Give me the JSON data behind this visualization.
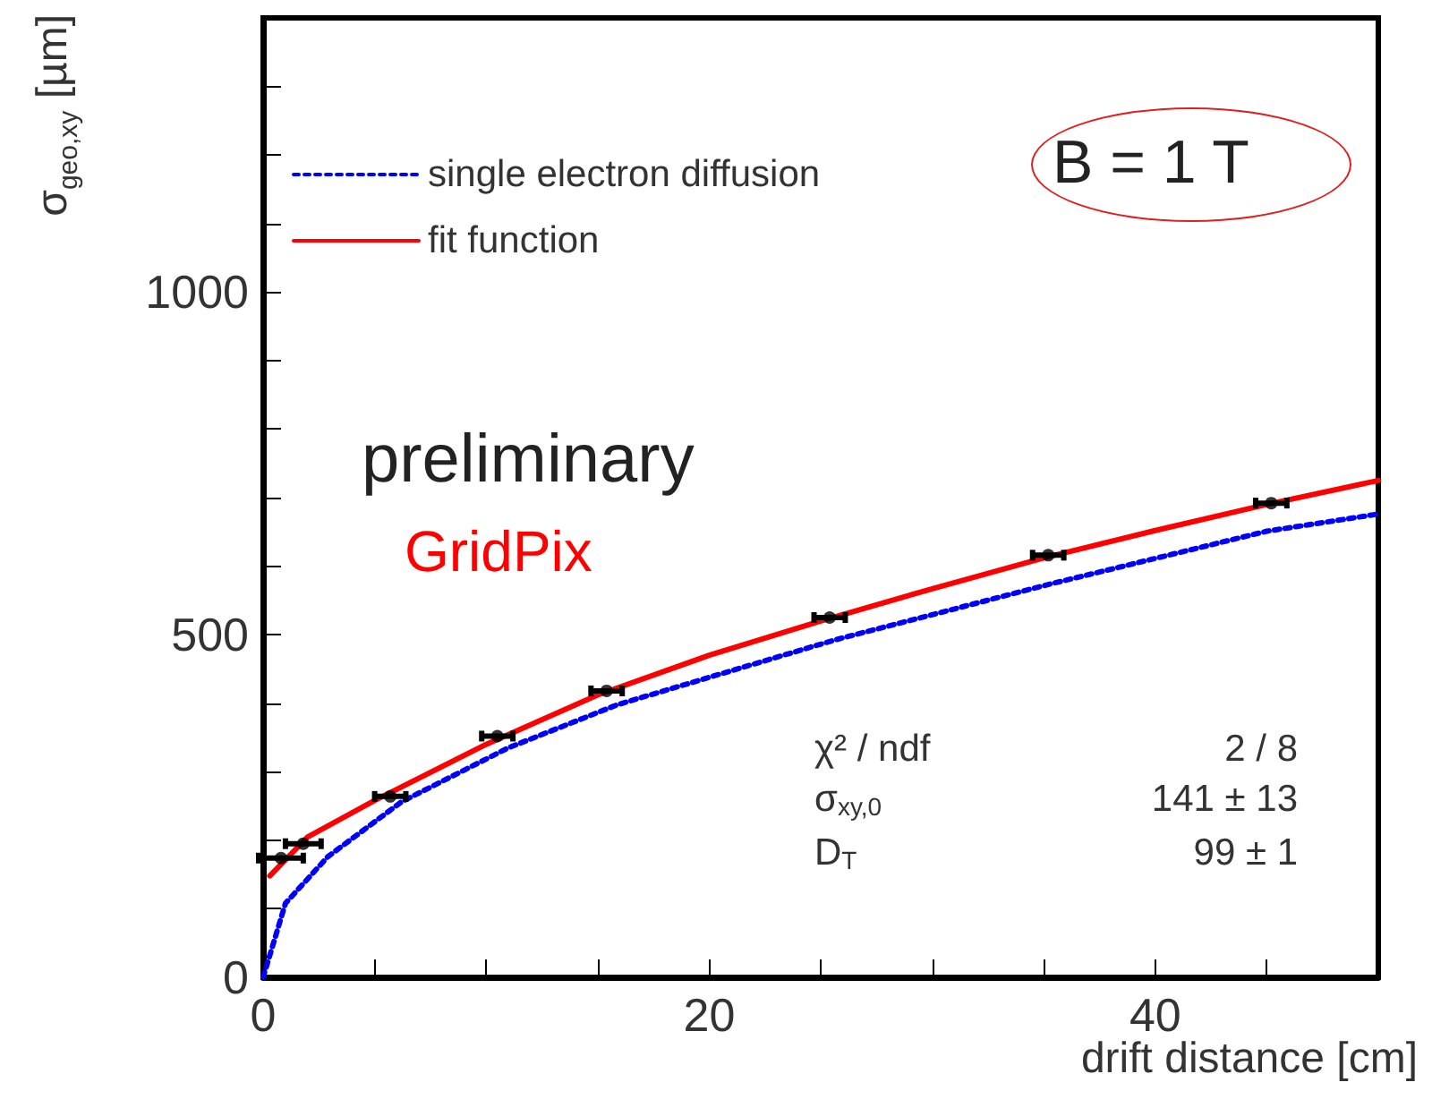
{
  "chart_data": {
    "type": "line",
    "xlabel": "drift distance [cm]",
    "ylabel": "σ$_{geo,xy}$ [µm]",
    "xlim": [
      0,
      50
    ],
    "xticks": [
      0,
      {
        "value": 5,
        "label": null
      },
      {
        "value": 10,
        "label": null
      },
      {
        "value": 15,
        "label": null
      },
      20,
      {
        "value": 25,
        "label": null
      },
      {
        "value": 30,
        "label": null
      },
      {
        "value": 35,
        "label": null
      },
      40,
      {
        "value": 45,
        "label": null
      },
      {
        "value": 50,
        "label": null
      }
    ],
    "ylim": [
      0,
      1400
    ],
    "yticks": [
      0,
      {
        "value": 100,
        "label": null
      },
      {
        "value": 200,
        "label": null
      },
      {
        "value": 300,
        "label": null
      },
      {
        "value": 400,
        "label": null
      },
      500,
      {
        "value": 600,
        "label": null
      },
      {
        "value": 700,
        "label": null
      },
      {
        "value": 800,
        "label": null
      },
      {
        "value": 900,
        "label": null
      },
      1000,
      {
        "value": 1100,
        "label": null
      },
      {
        "value": 1200,
        "label": null
      },
      {
        "value": 1300,
        "label": null
      }
    ],
    "grid": false,
    "legend": "top left",
    "marker": "none",
    "series": [
      {
        "name": "single electron diffusion",
        "color": "#0000ff",
        "line_style": "dotted",
        "x": [
          0,
          1,
          2.9,
          6.2,
          11,
          15.9,
          25.6,
          35.3,
          45,
          50
        ],
        "values": [
          0,
          108,
          176,
          256,
          335,
          398,
          492,
          574,
          651,
          676
        ]
      },
      {
        "name": "fit function",
        "color": "#ff0000",
        "line_style": "solid",
        "x": [
          0.3,
          2,
          5,
          10,
          15,
          20,
          25,
          30,
          35,
          40,
          45,
          50
        ],
        "values": [
          148,
          205,
          258,
          340,
          412,
          470,
          520,
          567,
          612,
          652,
          690,
          725
        ]
      },
      {
        "type": "scatter",
        "marker": "circle",
        "color": "#000000",
        "x": [
          0.8,
          1.8,
          5.7,
          10.5,
          15.4,
          25.4,
          35.2,
          45.2
        ],
        "values": [
          174,
          195,
          264,
          352,
          418,
          525,
          616,
          692
        ],
        "xerrors": [
          1,
          0.8,
          0.7,
          0.7,
          0.7,
          0.7,
          0.7,
          0.7
        ]
      }
    ],
    "annotations": [
      "B = 1 T",
      "preliminary",
      "GridPix",
      "χ² / ndf",
      "2 / 8",
      "σ$_{xy,0}$",
      "141 ± 13",
      "D$_{T}$",
      "99 ± 1"
    ]
  }
}
